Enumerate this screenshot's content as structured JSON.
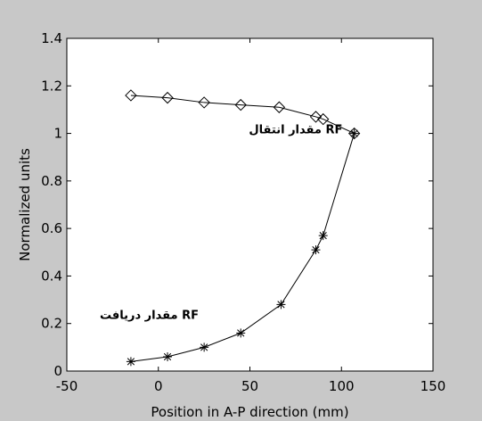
{
  "chart_data": {
    "type": "line",
    "xlabel": "Position in A-P direction (mm)",
    "ylabel": "Normalized units",
    "xlim": [
      -50,
      150
    ],
    "ylim": [
      0,
      1.4
    ],
    "x_ticks": [
      -50,
      0,
      50,
      100,
      150
    ],
    "y_ticks": [
      0,
      0.2,
      0.4,
      0.6,
      0.8,
      1,
      1.2,
      1.4
    ],
    "x_tick_labels": [
      "-50",
      "0",
      "50",
      "100",
      "150"
    ],
    "y_tick_labels": [
      "0",
      "0.2",
      "0.4",
      "0.6",
      "0.8",
      "1",
      "1.2",
      "1.4"
    ],
    "grid": false,
    "series": [
      {
        "marker": "diamond",
        "color": "#000000",
        "x": [
          -15,
          5,
          25,
          45,
          66,
          86,
          90,
          107
        ],
        "y": [
          1.16,
          1.15,
          1.13,
          1.12,
          1.11,
          1.07,
          1.06,
          1.0
        ]
      },
      {
        "marker": "star",
        "color": "#000000",
        "x": [
          -15,
          5,
          25,
          45,
          67,
          86,
          90,
          107
        ],
        "y": [
          0.04,
          0.06,
          0.1,
          0.16,
          0.28,
          0.51,
          0.57,
          1.0
        ]
      }
    ],
    "annotations": [
      {
        "text": "مقدار انتقال RF",
        "x": 75,
        "y": 1.0
      },
      {
        "text": "مقدار دریافت RF",
        "x": -5,
        "y": 0.22
      }
    ]
  }
}
